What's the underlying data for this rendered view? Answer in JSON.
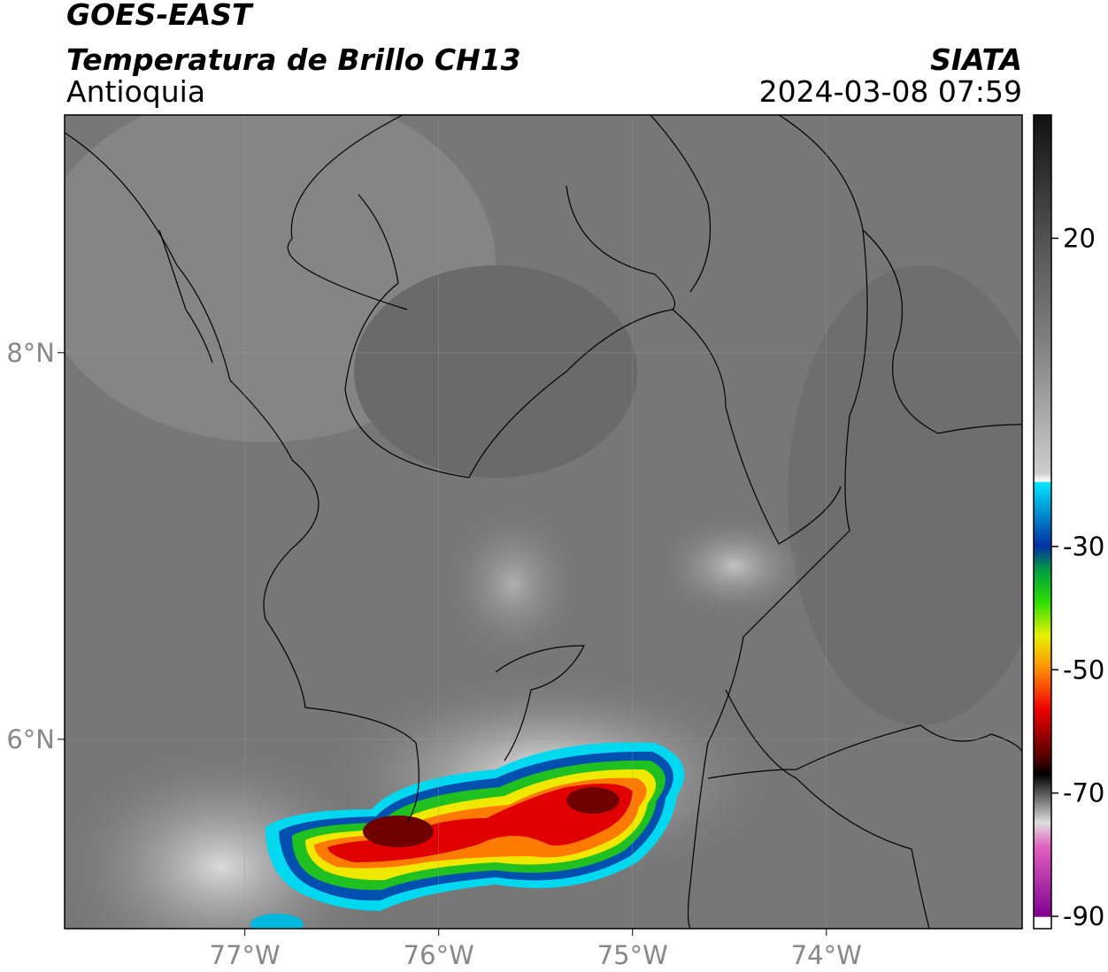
{
  "header": {
    "title": "GOES-EAST",
    "subtitle": "Temperatura de Brillo CH13",
    "region": "Antioquia",
    "source": "SIATA",
    "timestamp": "2024-03-08 07:59"
  },
  "map": {
    "xlim": [
      -77.93,
      -72.99
    ],
    "ylim": [
      5.02,
      9.23
    ],
    "xticks": [
      {
        "value": -77,
        "label": "77°W"
      },
      {
        "value": -76,
        "label": "76°W"
      },
      {
        "value": -75,
        "label": "75°W"
      },
      {
        "value": -74,
        "label": "74°W"
      }
    ],
    "yticks": [
      {
        "value": 6,
        "label": "6°N"
      },
      {
        "value": 8,
        "label": "8°N"
      }
    ],
    "grid": true
  },
  "colorbar": {
    "lim": [
      -92,
      40
    ],
    "ticks": [
      20,
      -30,
      -50,
      -70,
      -90
    ]
  }
}
